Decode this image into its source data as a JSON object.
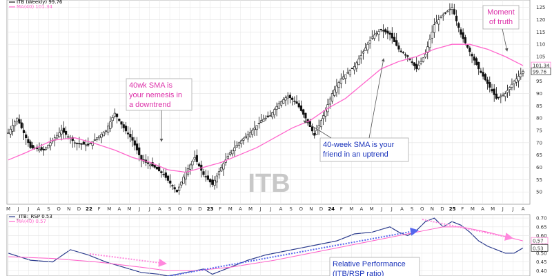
{
  "colors": {
    "price": "#111111",
    "ma": "#ff66cc",
    "annotation_blue": "#1a33bb",
    "annotation_pink": "#dd33aa",
    "grid": "#e4e4e4",
    "watermark": "#c8c8c8",
    "arrow_pink": "#ff88dd",
    "arrow_blue": "#5566ee"
  },
  "chart_data": [
    {
      "type": "candlestick",
      "symbol_legend": "ITB (Weekly) 99.76",
      "ma_legend": "MA(40) 101.34",
      "watermark": "ITB",
      "last_price_label": "99.76",
      "last_ma_label": "101.34",
      "ylim": [
        45,
        128
      ],
      "y_ticks": [
        50,
        55,
        60,
        65,
        70,
        75,
        80,
        85,
        90,
        95,
        100,
        105,
        110,
        115,
        120,
        125
      ],
      "grid": true,
      "x_labels": [
        "M",
        "J",
        "J",
        "A",
        "S",
        "O",
        "N",
        "D",
        "22",
        "F",
        "M",
        "A",
        "M",
        "J",
        "J",
        "A",
        "S",
        "O",
        "N",
        "D",
        "23",
        "F",
        "M",
        "A",
        "M",
        "J",
        "J",
        "A",
        "S",
        "O",
        "N",
        "D",
        "24",
        "F",
        "M",
        "A",
        "M",
        "J",
        "J",
        "A",
        "S",
        "O",
        "N",
        "D",
        "25",
        "F",
        "M",
        "A",
        "M",
        "J",
        "J",
        "A"
      ],
      "x_label_years": [
        "22",
        "23",
        "24",
        "25"
      ],
      "price_path": [
        [
          0,
          74
        ],
        [
          2,
          80
        ],
        [
          5,
          68
        ],
        [
          8,
          67
        ],
        [
          12,
          75
        ],
        [
          15,
          70
        ],
        [
          18,
          69
        ],
        [
          22,
          75
        ],
        [
          24,
          82
        ],
        [
          26,
          76
        ],
        [
          28,
          71
        ],
        [
          30,
          63
        ],
        [
          33,
          60
        ],
        [
          35,
          57
        ],
        [
          38,
          50
        ],
        [
          40,
          58
        ],
        [
          42,
          64
        ],
        [
          44,
          57
        ],
        [
          46,
          53
        ],
        [
          48,
          60
        ],
        [
          50,
          66
        ],
        [
          52,
          70
        ],
        [
          55,
          75
        ],
        [
          57,
          79
        ],
        [
          59,
          81
        ],
        [
          61,
          86
        ],
        [
          63,
          89
        ],
        [
          65,
          86
        ],
        [
          67,
          80
        ],
        [
          69,
          73
        ],
        [
          71,
          81
        ],
        [
          73,
          90
        ],
        [
          75,
          96
        ],
        [
          78,
          101
        ],
        [
          80,
          107
        ],
        [
          82,
          113
        ],
        [
          84,
          116
        ],
        [
          86,
          114
        ],
        [
          88,
          108
        ],
        [
          90,
          105
        ],
        [
          92,
          100
        ],
        [
          94,
          106
        ],
        [
          96,
          118
        ],
        [
          98,
          122
        ],
        [
          100,
          125
        ],
        [
          102,
          114
        ],
        [
          104,
          107
        ],
        [
          106,
          100
        ],
        [
          108,
          94
        ],
        [
          110,
          88
        ],
        [
          112,
          90
        ],
        [
          114,
          95
        ],
        [
          116,
          99
        ]
      ],
      "ma40_path": [
        [
          0,
          63
        ],
        [
          4,
          66
        ],
        [
          10,
          71
        ],
        [
          15,
          72
        ],
        [
          19,
          70
        ],
        [
          24,
          67
        ],
        [
          28,
          64
        ],
        [
          32,
          62
        ],
        [
          36,
          59
        ],
        [
          40,
          58
        ],
        [
          44,
          60
        ],
        [
          48,
          62
        ],
        [
          52,
          65
        ],
        [
          56,
          68
        ],
        [
          60,
          72
        ],
        [
          64,
          76
        ],
        [
          68,
          79
        ],
        [
          72,
          84
        ],
        [
          76,
          88
        ],
        [
          80,
          94
        ],
        [
          84,
          100
        ],
        [
          88,
          103
        ],
        [
          92,
          105
        ],
        [
          96,
          108
        ],
        [
          100,
          110
        ],
        [
          104,
          110
        ],
        [
          108,
          108
        ],
        [
          112,
          105
        ],
        [
          116,
          101.34
        ]
      ],
      "annotations": [
        {
          "text": "40wk SMA is\nyour nemesis in\na downtrend",
          "color": "pink"
        },
        {
          "text": "40-week SMA is your\nfriend in an uptrend",
          "color": "blue"
        },
        {
          "text": "Moment\nof truth",
          "color": "pink"
        }
      ]
    },
    {
      "type": "line",
      "symbol_legend": "_ITB:_RSP 0.53",
      "ma_legend": "MA(40) 0.57",
      "last_value_label": "0.53",
      "last_ma_label": "0.57",
      "ylim": [
        0.37,
        0.72
      ],
      "y_ticks": [
        0.4,
        0.45,
        0.5,
        0.55,
        0.6,
        0.65,
        0.7
      ],
      "grid": true,
      "ratio_path": [
        [
          0,
          0.5
        ],
        [
          5,
          0.46
        ],
        [
          10,
          0.45
        ],
        [
          14,
          0.52
        ],
        [
          18,
          0.49
        ],
        [
          22,
          0.45
        ],
        [
          26,
          0.42
        ],
        [
          30,
          0.39
        ],
        [
          34,
          0.38
        ],
        [
          36,
          0.37
        ],
        [
          40,
          0.39
        ],
        [
          44,
          0.41
        ],
        [
          46,
          0.38
        ],
        [
          50,
          0.42
        ],
        [
          54,
          0.46
        ],
        [
          58,
          0.49
        ],
        [
          62,
          0.51
        ],
        [
          66,
          0.53
        ],
        [
          70,
          0.55
        ],
        [
          74,
          0.57
        ],
        [
          78,
          0.61
        ],
        [
          82,
          0.62
        ],
        [
          86,
          0.65
        ],
        [
          88,
          0.62
        ],
        [
          90,
          0.6
        ],
        [
          92,
          0.63
        ],
        [
          94,
          0.68
        ],
        [
          96,
          0.7
        ],
        [
          98,
          0.65
        ],
        [
          100,
          0.68
        ],
        [
          102,
          0.66
        ],
        [
          104,
          0.62
        ],
        [
          106,
          0.57
        ],
        [
          108,
          0.54
        ],
        [
          110,
          0.52
        ],
        [
          112,
          0.5
        ],
        [
          114,
          0.5
        ],
        [
          116,
          0.53
        ]
      ],
      "ma40_path": [
        [
          0,
          0.48
        ],
        [
          10,
          0.47
        ],
        [
          20,
          0.45
        ],
        [
          30,
          0.42
        ],
        [
          36,
          0.4
        ],
        [
          42,
          0.4
        ],
        [
          50,
          0.42
        ],
        [
          60,
          0.46
        ],
        [
          70,
          0.51
        ],
        [
          80,
          0.56
        ],
        [
          88,
          0.6
        ],
        [
          94,
          0.63
        ],
        [
          98,
          0.65
        ],
        [
          102,
          0.65
        ],
        [
          108,
          0.62
        ],
        [
          116,
          0.57
        ]
      ],
      "annotations": [
        {
          "text": "Relative Performance\n(ITB/RSP ratio)"
        }
      ]
    }
  ]
}
